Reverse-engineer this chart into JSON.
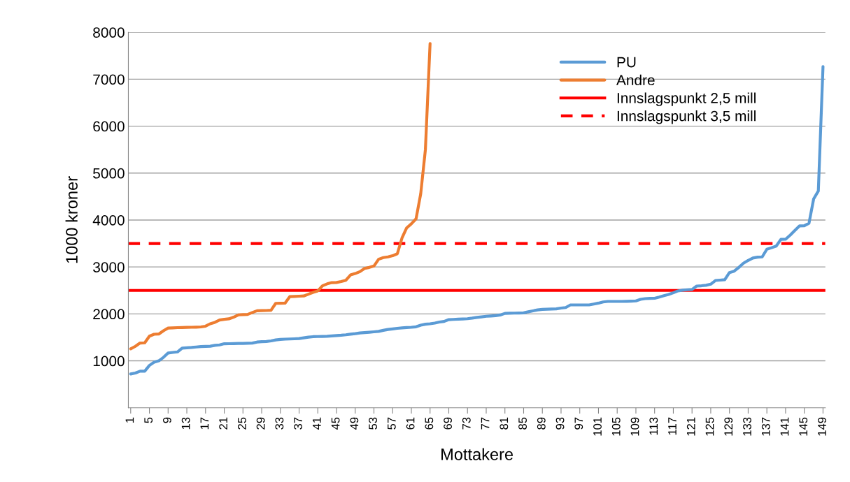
{
  "chart_data": {
    "type": "line",
    "xlabel": "Mottakere",
    "ylabel": "1000 kroner",
    "categories": [
      "1",
      null,
      null,
      null,
      "5",
      null,
      null,
      null,
      "9",
      null,
      null,
      null,
      "13",
      null,
      null,
      null,
      "17",
      null,
      null,
      null,
      "21",
      null,
      null,
      null,
      "25",
      null,
      null,
      null,
      "29",
      null,
      null,
      null,
      "33",
      null,
      null,
      null,
      "37",
      null,
      null,
      null,
      "41",
      null,
      null,
      null,
      "45",
      null,
      null,
      null,
      "49",
      null,
      null,
      null,
      "53",
      null,
      null,
      null,
      "57",
      null,
      null,
      null,
      "61",
      null,
      null,
      null,
      "65",
      null,
      null,
      null,
      "69",
      null,
      null,
      null,
      "73",
      null,
      null,
      null,
      "77",
      null,
      null,
      null,
      "81",
      null,
      null,
      null,
      "85",
      null,
      null,
      null,
      "89",
      null,
      null,
      null,
      "93",
      null,
      null,
      null,
      "97",
      null,
      null,
      null,
      "101",
      null,
      null,
      null,
      "105",
      null,
      null,
      null,
      "109",
      null,
      null,
      null,
      "113",
      null,
      null,
      null,
      "117",
      null,
      null,
      null,
      "121",
      null,
      null,
      null,
      "125",
      null,
      null,
      null,
      "129",
      null,
      null,
      null,
      "133",
      null,
      null,
      null,
      "137",
      null,
      null,
      null,
      "141",
      null,
      null,
      null,
      "145",
      null,
      null,
      null,
      "149"
    ],
    "series": [
      {
        "name": "PU",
        "color": "#5b9bd5",
        "values": [
          720,
          740,
          779,
          779,
          902,
          970,
          1000,
          1074,
          1167,
          1180,
          1190,
          1271,
          1278,
          1285,
          1295,
          1305,
          1308,
          1312,
          1330,
          1340,
          1364,
          1366,
          1368,
          1370,
          1372,
          1375,
          1379,
          1400,
          1408,
          1412,
          1425,
          1445,
          1457,
          1462,
          1466,
          1470,
          1475,
          1490,
          1505,
          1515,
          1518,
          1521,
          1524,
          1530,
          1538,
          1545,
          1555,
          1568,
          1580,
          1595,
          1602,
          1610,
          1618,
          1628,
          1650,
          1668,
          1680,
          1693,
          1703,
          1710,
          1715,
          1725,
          1760,
          1780,
          1790,
          1805,
          1826,
          1840,
          1878,
          1882,
          1887,
          1892,
          1898,
          1910,
          1925,
          1937,
          1949,
          1955,
          1962,
          1977,
          2011,
          2014,
          2016,
          2018,
          2022,
          2045,
          2065,
          2085,
          2096,
          2100,
          2104,
          2107,
          2125,
          2136,
          2192,
          2192,
          2192,
          2192,
          2192,
          2210,
          2230,
          2255,
          2266,
          2266,
          2266,
          2266,
          2268,
          2272,
          2277,
          2310,
          2325,
          2330,
          2333,
          2360,
          2390,
          2415,
          2450,
          2490,
          2505,
          2515,
          2520,
          2593,
          2600,
          2610,
          2633,
          2712,
          2720,
          2729,
          2881,
          2910,
          2990,
          3080,
          3140,
          3190,
          3209,
          3215,
          3379,
          3410,
          3446,
          3588,
          3590,
          3680,
          3780,
          3876,
          3880,
          3932,
          4450,
          4620,
          7270
        ]
      },
      {
        "name": "Andre",
        "color": "#ed7d31",
        "values": [
          1256,
          1310,
          1379,
          1384,
          1526,
          1566,
          1571,
          1640,
          1698,
          1703,
          1708,
          1710,
          1713,
          1715,
          1718,
          1723,
          1738,
          1790,
          1821,
          1870,
          1885,
          1895,
          1930,
          1979,
          1985,
          1989,
          2030,
          2067,
          2070,
          2072,
          2077,
          2225,
          2228,
          2230,
          2367,
          2372,
          2377,
          2382,
          2420,
          2460,
          2490,
          2599,
          2640,
          2667,
          2670,
          2690,
          2717,
          2830,
          2860,
          2900,
          2968,
          2990,
          3020,
          3164,
          3200,
          3215,
          3240,
          3282,
          3617,
          3833,
          3920,
          4025,
          4560,
          5500,
          7760,
          null,
          null,
          null,
          null,
          null,
          null,
          null,
          null,
          null,
          null,
          null,
          null,
          null,
          null,
          null,
          null,
          null,
          null,
          null,
          null,
          null,
          null,
          null,
          null,
          null,
          null,
          null,
          null,
          null,
          null,
          null,
          null,
          null,
          null,
          null,
          null,
          null,
          null,
          null,
          null,
          null,
          null,
          null,
          null,
          null,
          null,
          null,
          null,
          null,
          null,
          null,
          null,
          null,
          null,
          null,
          null,
          null,
          null,
          null,
          null,
          null,
          null,
          null,
          null,
          null,
          null,
          null,
          null,
          null,
          null,
          null,
          null,
          null,
          null,
          null,
          null,
          null,
          null,
          null,
          null,
          null,
          null,
          null,
          null
        ]
      }
    ],
    "ref_lines": [
      {
        "axis": "y",
        "value": 2500,
        "label": "Innslagspunkt 2,5 mill",
        "color": "#ff0000",
        "line_style": "solid"
      },
      {
        "axis": "y",
        "value": 3500,
        "label": "Innslagspunkt 3,5 mill",
        "color": "#ff0000",
        "line_style": "dashed"
      }
    ],
    "ylim": [
      0,
      8000
    ],
    "yticks": [
      1000,
      2000,
      3000,
      4000,
      5000,
      6000,
      7000,
      8000
    ],
    "grid": "y",
    "legend": "top right",
    "marker": "none",
    "line_style": "solid"
  }
}
